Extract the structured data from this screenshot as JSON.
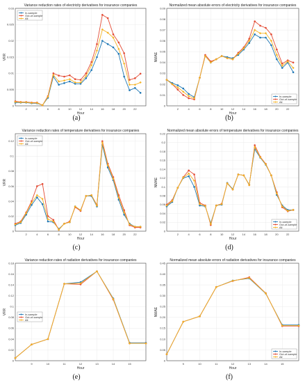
{
  "colors": {
    "in": "#1f77b4",
    "out": "#e34a33",
    "all": "#f5b324"
  },
  "chart_data": [
    {
      "type": "line",
      "title": "Variance reduction rates of electricity derivatives for insurance companies",
      "xlabel": "Hour",
      "ylabel": "VRR",
      "xlim": [
        0,
        24
      ],
      "ylim": [
        0,
        0.03
      ],
      "xticks": [
        2,
        4,
        6,
        8,
        10,
        12,
        14,
        16,
        18,
        20,
        22
      ],
      "yticks": [
        0,
        0.005,
        0.01,
        0.015,
        0.02,
        0.025,
        0.03
      ],
      "ytick_labels": [
        "0",
        "0.005",
        "0.01",
        "0.015",
        "0.02",
        "0.025",
        "0.03"
      ],
      "legend": "top-left",
      "grid": true,
      "x": [
        0,
        1,
        2,
        3,
        4,
        5,
        6,
        7,
        8,
        9,
        10,
        11,
        12,
        13,
        14,
        15,
        16,
        17,
        18,
        19,
        20,
        21,
        22,
        23
      ],
      "series": [
        {
          "name": "In-sample",
          "values": [
            0.001,
            0.001,
            0.001,
            0.0008,
            0.0008,
            0.0002,
            0.0025,
            0.009,
            0.0065,
            0.007,
            0.0075,
            0.0068,
            0.0068,
            0.0085,
            0.011,
            0.015,
            0.02,
            0.019,
            0.018,
            0.016,
            0.009,
            0.0048,
            0.0055,
            0.004
          ]
        },
        {
          "name": "Out-of-sample",
          "values": [
            0.0014,
            0.0012,
            0.0012,
            0.001,
            0.001,
            0.0002,
            0.003,
            0.01,
            0.0093,
            0.009,
            0.0094,
            0.0082,
            0.008,
            0.01,
            0.0135,
            0.019,
            0.028,
            0.027,
            0.022,
            0.0195,
            0.0162,
            0.008,
            0.0085,
            0.0099
          ]
        },
        {
          "name": "All",
          "values": [
            0.0012,
            0.0011,
            0.0011,
            0.0009,
            0.0009,
            0.0002,
            0.0028,
            0.0095,
            0.0075,
            0.0078,
            0.0082,
            0.0072,
            0.0072,
            0.0092,
            0.0125,
            0.017,
            0.0235,
            0.0225,
            0.021,
            0.0175,
            0.013,
            0.0065,
            0.0065,
            0.0072
          ]
        }
      ]
    },
    {
      "type": "line",
      "title": "Normalized mean absolute errors of electricity derivatives for insurance companies",
      "xlabel": "Hour",
      "ylabel": "NMAE",
      "xlim": [
        0,
        24
      ],
      "ylim": [
        0,
        0.09
      ],
      "xticks": [
        2,
        4,
        6,
        8,
        10,
        12,
        14,
        16,
        18,
        20,
        22
      ],
      "yticks": [
        0,
        0.01,
        0.02,
        0.03,
        0.04,
        0.05,
        0.06,
        0.07,
        0.08,
        0.09
      ],
      "ytick_labels": [
        "0",
        "0.01",
        "0.02",
        "0.03",
        "0.04",
        "0.05",
        "0.06",
        "0.07",
        "0.08",
        "0.09"
      ],
      "legend": "bottom-right",
      "grid": true,
      "x": [
        0,
        1,
        2,
        3,
        4,
        5,
        6,
        7,
        8,
        9,
        10,
        11,
        12,
        13,
        14,
        15,
        16,
        17,
        18,
        19,
        20,
        21,
        22,
        23
      ],
      "series": [
        {
          "name": "In-sample",
          "values": [
            0.024,
            0.021,
            0.019,
            0.016,
            0.011,
            0.008,
            0.026,
            0.046,
            0.04,
            0.043,
            0.046,
            0.045,
            0.044,
            0.047,
            0.052,
            0.058,
            0.066,
            0.063,
            0.063,
            0.056,
            0.043,
            0.035,
            0.04,
            0.031
          ]
        },
        {
          "name": "Out-of-sample",
          "values": [
            0.024,
            0.02,
            0.015,
            0.01,
            0.007,
            0.006,
            0.026,
            0.047,
            0.041,
            0.043,
            0.046,
            0.044,
            0.043,
            0.049,
            0.054,
            0.062,
            0.078,
            0.074,
            0.072,
            0.066,
            0.052,
            0.039,
            0.042,
            0.04
          ]
        },
        {
          "name": "All",
          "values": [
            0.024,
            0.02,
            0.017,
            0.013,
            0.009,
            0.007,
            0.026,
            0.046,
            0.04,
            0.043,
            0.046,
            0.044,
            0.043,
            0.048,
            0.053,
            0.06,
            0.07,
            0.067,
            0.067,
            0.06,
            0.047,
            0.037,
            0.041,
            0.035
          ]
        }
      ]
    },
    {
      "type": "line",
      "title": "Variance reduction rates of temperature derivatives for insurance companies",
      "xlabel": "Hour",
      "ylabel": "VRR",
      "xlim": [
        0,
        24
      ],
      "ylim": [
        0,
        0.13
      ],
      "xticks": [
        2,
        4,
        6,
        8,
        10,
        12,
        14,
        16,
        18,
        20,
        22
      ],
      "yticks": [
        0,
        0.02,
        0.04,
        0.06,
        0.08,
        0.1,
        0.12
      ],
      "ytick_labels": [
        "0",
        "0.02",
        "0.04",
        "0.06",
        "0.08",
        "0.1",
        "0.12"
      ],
      "legend": "top-left",
      "grid": true,
      "x": [
        0,
        1,
        2,
        3,
        4,
        5,
        6,
        7,
        8,
        9,
        10,
        11,
        12,
        13,
        14,
        15,
        16,
        17,
        18,
        19,
        20,
        21,
        22,
        23
      ],
      "series": [
        {
          "name": "In-sample",
          "values": [
            0.008,
            0.011,
            0.022,
            0.035,
            0.045,
            0.036,
            0.013,
            0.012,
            0.003,
            0.01,
            0.012,
            0.033,
            0.028,
            0.047,
            0.047,
            0.033,
            0.115,
            0.085,
            0.068,
            0.042,
            0.022,
            0.01,
            0.006,
            0.006
          ]
        },
        {
          "name": "Out-of-sample",
          "values": [
            0.01,
            0.013,
            0.025,
            0.04,
            0.06,
            0.063,
            0.02,
            0.015,
            0.002,
            0.01,
            0.013,
            0.032,
            0.027,
            0.047,
            0.048,
            0.035,
            0.12,
            0.09,
            0.072,
            0.048,
            0.028,
            0.008,
            0.005,
            0.005
          ]
        },
        {
          "name": "All",
          "values": [
            0.009,
            0.012,
            0.024,
            0.038,
            0.048,
            0.043,
            0.016,
            0.013,
            0.002,
            0.01,
            0.012,
            0.033,
            0.028,
            0.047,
            0.048,
            0.034,
            0.118,
            0.088,
            0.07,
            0.045,
            0.025,
            0.009,
            0.006,
            0.006
          ]
        }
      ]
    },
    {
      "type": "line",
      "title": "Normalized mean absolute errors of temperature derivatives for insurance companies",
      "xlabel": "Hour",
      "ylabel": "NMAE",
      "xlim": [
        0,
        24
      ],
      "ylim": [
        0,
        0.22
      ],
      "xticks": [
        2,
        4,
        6,
        8,
        10,
        12,
        14,
        16,
        18,
        20,
        22
      ],
      "yticks": [
        0,
        0.02,
        0.04,
        0.06,
        0.08,
        0.1,
        0.12,
        0.14,
        0.16,
        0.18,
        0.2,
        0.22
      ],
      "ytick_labels": [
        "0",
        "0.02",
        "0.04",
        "0.06",
        "0.08",
        "0.1",
        "0.12",
        "0.14",
        "0.16",
        "0.18",
        "0.2",
        "0.22"
      ],
      "legend": "bottom-right",
      "grid": true,
      "x": [
        0,
        1,
        2,
        3,
        4,
        5,
        6,
        7,
        8,
        9,
        10,
        11,
        12,
        13,
        14,
        15,
        16,
        17,
        18,
        19,
        20,
        21,
        22,
        23
      ],
      "series": [
        {
          "name": "In-sample",
          "values": [
            0.056,
            0.066,
            0.098,
            0.12,
            0.124,
            0.1,
            0.058,
            0.056,
            0.018,
            0.058,
            0.06,
            0.109,
            0.095,
            0.128,
            0.126,
            0.105,
            0.185,
            0.166,
            0.15,
            0.126,
            0.082,
            0.058,
            0.048,
            0.048
          ]
        },
        {
          "name": "Out-of-sample",
          "values": [
            0.06,
            0.07,
            0.098,
            0.122,
            0.137,
            0.128,
            0.064,
            0.058,
            0.014,
            0.058,
            0.062,
            0.108,
            0.094,
            0.128,
            0.126,
            0.104,
            0.194,
            0.168,
            0.152,
            0.126,
            0.088,
            0.054,
            0.045,
            0.048
          ]
        },
        {
          "name": "All",
          "values": [
            0.058,
            0.068,
            0.098,
            0.121,
            0.13,
            0.114,
            0.061,
            0.057,
            0.016,
            0.058,
            0.061,
            0.108,
            0.094,
            0.128,
            0.126,
            0.104,
            0.19,
            0.167,
            0.151,
            0.126,
            0.085,
            0.056,
            0.046,
            0.048
          ]
        }
      ]
    },
    {
      "type": "line",
      "title": "Variance reduction rates of radiation derivatives for insurance companies",
      "xlabel": "Hour",
      "ylabel": "VRR",
      "xlim": [
        8,
        16
      ],
      "ylim": [
        0,
        0.18
      ],
      "xticks": [
        9,
        10,
        11,
        12,
        13,
        14,
        15
      ],
      "yticks": [
        0,
        0.02,
        0.04,
        0.06,
        0.08,
        0.1,
        0.12,
        0.14,
        0.16,
        0.18
      ],
      "ytick_labels": [
        "0",
        "0.02",
        "0.04",
        "0.06",
        "0.08",
        "0.1",
        "0.12",
        "0.14",
        "0.16",
        "0.18"
      ],
      "legend": "left",
      "grid": true,
      "x": [
        8,
        9,
        10,
        11,
        12,
        13,
        14,
        15,
        16
      ],
      "series": [
        {
          "name": "In-sample",
          "values": [
            0.005,
            0.03,
            0.04,
            0.142,
            0.145,
            0.165,
            0.115,
            0.033,
            0.033
          ]
        },
        {
          "name": "Out-of-sample",
          "values": [
            0.005,
            0.03,
            0.04,
            0.142,
            0.141,
            0.165,
            0.113,
            0.032,
            0.032
          ]
        },
        {
          "name": "All",
          "values": [
            0.005,
            0.03,
            0.04,
            0.142,
            0.143,
            0.165,
            0.114,
            0.032,
            0.032
          ]
        }
      ]
    },
    {
      "type": "line",
      "title": "Normalized mean absolute errors of radiation derivatives for insurance companies",
      "xlabel": "Hour",
      "ylabel": "NMAE",
      "xlim": [
        8,
        16
      ],
      "ylim": [
        0,
        0.45
      ],
      "xticks": [
        9,
        10,
        11,
        12,
        13,
        14,
        15
      ],
      "yticks": [
        0,
        0.05,
        0.1,
        0.15,
        0.2,
        0.25,
        0.3,
        0.35,
        0.4,
        0.45
      ],
      "ytick_labels": [
        "0",
        "0.05",
        "0.10",
        "0.15",
        "0.20",
        "0.25",
        "0.30",
        "0.35",
        "0.40",
        "0.45"
      ],
      "legend": "bottom-right",
      "grid": true,
      "x": [
        8,
        9,
        10,
        11,
        12,
        13,
        14,
        15,
        16
      ],
      "series": [
        {
          "name": "In-sample",
          "values": [
            0.03,
            0.18,
            0.205,
            0.34,
            0.37,
            0.38,
            0.31,
            0.165,
            0.165
          ]
        },
        {
          "name": "Out-of-sample",
          "values": [
            0.03,
            0.18,
            0.205,
            0.34,
            0.368,
            0.385,
            0.312,
            0.16,
            0.16
          ]
        },
        {
          "name": "All",
          "values": [
            0.03,
            0.18,
            0.205,
            0.34,
            0.369,
            0.382,
            0.311,
            0.162,
            0.162
          ]
        }
      ]
    }
  ],
  "captions": [
    "(a)",
    "(b)",
    "(c)",
    "(d)",
    "(e)",
    "(f)"
  ]
}
